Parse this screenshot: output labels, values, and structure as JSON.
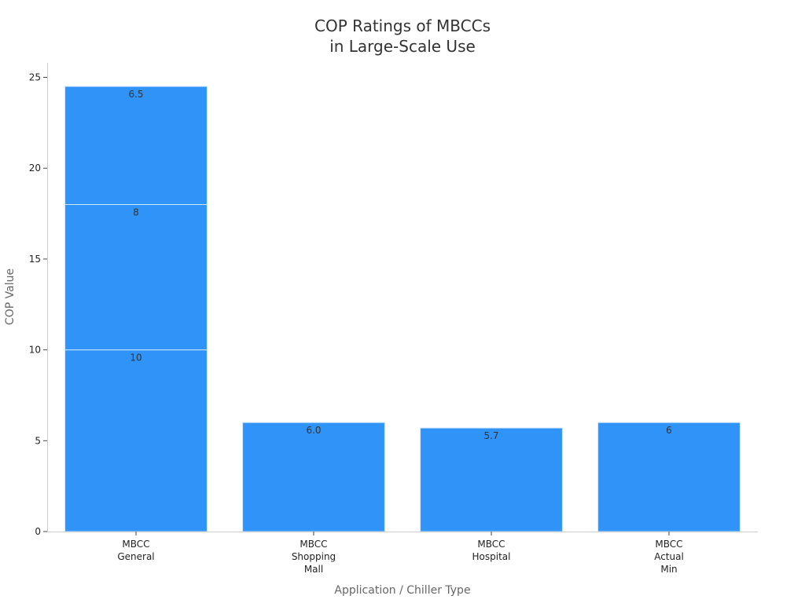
{
  "chart_data": {
    "type": "bar",
    "stacked": true,
    "title": [
      "COP Ratings of MBCCs",
      "in Large-Scale Use"
    ],
    "xlabel": "Application / Chiller Type",
    "ylabel": "COP Value",
    "ylim": [
      0,
      25.8
    ],
    "yticks": [
      0,
      5,
      10,
      15,
      20,
      25
    ],
    "grid": false,
    "bar_color": "#2f93f7",
    "categories": [
      [
        "MBCC",
        "General"
      ],
      [
        "MBCC",
        "Shopping",
        "Mall"
      ],
      [
        "MBCC",
        "Hospital"
      ],
      [
        "MBCC",
        "Actual",
        "Min"
      ]
    ],
    "stacks": [
      [
        {
          "value": 10,
          "label": "10"
        },
        {
          "value": 8,
          "label": "8"
        },
        {
          "value": 6.5,
          "label": "6.5"
        }
      ],
      [
        {
          "value": 6.0,
          "label": "6.0"
        }
      ],
      [
        {
          "value": 5.7,
          "label": "5.7"
        }
      ],
      [
        {
          "value": 6,
          "label": "6"
        }
      ]
    ]
  }
}
